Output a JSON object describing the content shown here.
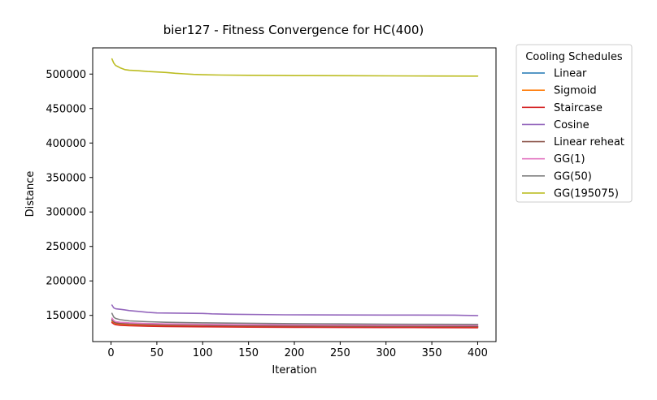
{
  "chart_data": {
    "type": "line",
    "title": "bier127 - Fitness Convergence for HC(400)",
    "xlabel": "Iteration",
    "ylabel": "Distance",
    "xlim": [
      -20,
      420
    ],
    "ylim": [
      112000,
      538000
    ],
    "xticks": [
      0,
      50,
      100,
      150,
      200,
      250,
      300,
      350,
      400
    ],
    "yticks": [
      150000,
      200000,
      250000,
      300000,
      350000,
      400000,
      450000,
      500000
    ],
    "grid": false,
    "legend": {
      "title": "Cooling Schedules",
      "placement": "outside-top-right"
    },
    "series": [
      {
        "name": "Linear",
        "color": "#1f77b4",
        "points": [
          [
            1,
            142500
          ],
          [
            3,
            139000
          ],
          [
            5,
            137800
          ],
          [
            10,
            137000
          ],
          [
            20,
            136300
          ],
          [
            40,
            135600
          ],
          [
            60,
            135100
          ],
          [
            100,
            134600
          ],
          [
            150,
            134200
          ],
          [
            200,
            133900
          ],
          [
            250,
            133700
          ],
          [
            300,
            133500
          ],
          [
            350,
            133400
          ],
          [
            400,
            133300
          ]
        ]
      },
      {
        "name": "Sigmoid",
        "color": "#ff7f0e",
        "points": [
          [
            1,
            141000
          ],
          [
            3,
            138500
          ],
          [
            5,
            137500
          ],
          [
            10,
            136800
          ],
          [
            20,
            136100
          ],
          [
            40,
            135400
          ],
          [
            60,
            134900
          ],
          [
            100,
            134400
          ],
          [
            150,
            134000
          ],
          [
            200,
            133700
          ],
          [
            250,
            133500
          ],
          [
            300,
            133300
          ],
          [
            350,
            133200
          ],
          [
            400,
            133100
          ]
        ]
      },
      {
        "name": "Staircase",
        "color": "#d62728",
        "points": [
          [
            1,
            139500
          ],
          [
            3,
            137500
          ],
          [
            5,
            136500
          ],
          [
            10,
            135600
          ],
          [
            20,
            134900
          ],
          [
            40,
            134300
          ],
          [
            60,
            133900
          ],
          [
            100,
            133400
          ],
          [
            150,
            133000
          ],
          [
            200,
            132700
          ],
          [
            250,
            132500
          ],
          [
            300,
            132300
          ],
          [
            350,
            132200
          ],
          [
            400,
            132100
          ]
        ]
      },
      {
        "name": "Cosine",
        "color": "#9467bd",
        "points": [
          [
            1,
            165000
          ],
          [
            3,
            161000
          ],
          [
            5,
            159500
          ],
          [
            10,
            158800
          ],
          [
            15,
            158000
          ],
          [
            20,
            157000
          ],
          [
            30,
            155800
          ],
          [
            40,
            154500
          ],
          [
            50,
            153500
          ],
          [
            100,
            152800
          ],
          [
            110,
            152200
          ],
          [
            130,
            151600
          ],
          [
            190,
            150800
          ],
          [
            250,
            150600
          ],
          [
            300,
            150500
          ],
          [
            375,
            150400
          ],
          [
            385,
            150000
          ],
          [
            400,
            149800
          ]
        ]
      },
      {
        "name": "Linear reheat",
        "color": "#8c564b",
        "points": [
          [
            1,
            144000
          ],
          [
            3,
            140500
          ],
          [
            5,
            139300
          ],
          [
            10,
            138400
          ],
          [
            20,
            137600
          ],
          [
            40,
            136800
          ],
          [
            60,
            136200
          ],
          [
            100,
            135500
          ],
          [
            150,
            135000
          ],
          [
            200,
            134700
          ],
          [
            250,
            134500
          ],
          [
            300,
            134300
          ],
          [
            350,
            134200
          ],
          [
            400,
            134100
          ]
        ]
      },
      {
        "name": "GG(1)",
        "color": "#e377c2",
        "points": [
          [
            1,
            146000
          ],
          [
            3,
            142500
          ],
          [
            5,
            141000
          ],
          [
            10,
            140000
          ],
          [
            20,
            139200
          ],
          [
            40,
            138300
          ],
          [
            60,
            137700
          ],
          [
            100,
            137000
          ],
          [
            150,
            136500
          ],
          [
            200,
            136200
          ],
          [
            250,
            136000
          ],
          [
            300,
            135800
          ],
          [
            350,
            135700
          ],
          [
            400,
            135600
          ]
        ]
      },
      {
        "name": "GG(50)",
        "color": "#7f7f7f",
        "points": [
          [
            1,
            153000
          ],
          [
            3,
            147500
          ],
          [
            5,
            145500
          ],
          [
            10,
            143800
          ],
          [
            20,
            142000
          ],
          [
            40,
            140800
          ],
          [
            60,
            140000
          ],
          [
            100,
            139200
          ],
          [
            150,
            138600
          ],
          [
            200,
            138000
          ],
          [
            250,
            137600
          ],
          [
            300,
            137300
          ],
          [
            350,
            137100
          ],
          [
            400,
            137000
          ]
        ]
      },
      {
        "name": "GG(195075)",
        "color": "#bcbd22",
        "points": [
          [
            1,
            522000
          ],
          [
            3,
            516000
          ],
          [
            5,
            512500
          ],
          [
            8,
            510500
          ],
          [
            10,
            509000
          ],
          [
            15,
            506500
          ],
          [
            20,
            505500
          ],
          [
            30,
            504800
          ],
          [
            40,
            503800
          ],
          [
            50,
            503000
          ],
          [
            60,
            502300
          ],
          [
            70,
            501200
          ],
          [
            80,
            500300
          ],
          [
            90,
            499500
          ],
          [
            100,
            499000
          ],
          [
            120,
            498600
          ],
          [
            150,
            498200
          ],
          [
            190,
            497900
          ],
          [
            200,
            497800
          ],
          [
            260,
            497600
          ],
          [
            300,
            497400
          ],
          [
            350,
            497200
          ],
          [
            400,
            497000
          ]
        ]
      }
    ]
  }
}
